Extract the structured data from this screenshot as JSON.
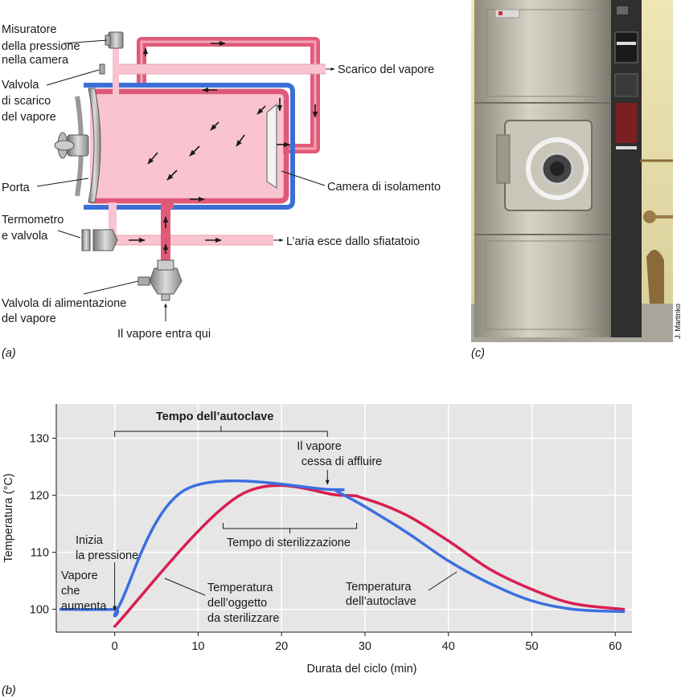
{
  "panel_a": {
    "label": "(a)",
    "labels": {
      "gauge": [
        "Misuratore",
        "della pressione",
        "nella camera"
      ],
      "exhaust_valve": [
        "Valvola",
        "di scarico",
        "del vapore"
      ],
      "door": "Porta",
      "thermometer": [
        "Termometro",
        "e valvola"
      ],
      "supply_valve": [
        "Valvola di alimentazione",
        "del vapore"
      ],
      "steam_in": "Il vapore entra qui",
      "air_out": "L’aria esce dallo sfiatatoio",
      "jacket": "Camera di isolamento",
      "steam_exhaust": "Scarico del vapore"
    },
    "colors": {
      "steam": "#e05a78",
      "chamber": "#f9c3d0",
      "jacket": "#3b6fd6",
      "metal": "#b5b5b5"
    }
  },
  "panel_c": {
    "label": "(c)",
    "credit": "J. Martinko"
  },
  "panel_b": {
    "label": "(b)"
  },
  "chart_data": {
    "type": "line",
    "xlabel": "Durata del ciclo (min)",
    "ylabel": "Temperatura (°C)",
    "xlim": [
      -7,
      62
    ],
    "ylim": [
      96,
      136
    ],
    "xticks": [
      0,
      10,
      20,
      30,
      40,
      50,
      60
    ],
    "yticks": [
      100,
      110,
      120,
      130
    ],
    "grid": true,
    "series": [
      {
        "name": "Temperatura dell’autoclave",
        "color": "#3b6fe0",
        "points": [
          [
            -6.5,
            100
          ],
          [
            0,
            100
          ],
          [
            0.5,
            100.5
          ],
          [
            8.5,
            121
          ],
          [
            26,
            121
          ],
          [
            26.5,
            120.8
          ],
          [
            27.5,
            120
          ],
          [
            30,
            118
          ],
          [
            35,
            113.5
          ],
          [
            40,
            108.5
          ],
          [
            45,
            104.5
          ],
          [
            50,
            101.5
          ],
          [
            55,
            100
          ],
          [
            61,
            99.6
          ]
        ]
      },
      {
        "name": "Temperatura dell’oggetto da sterilizzare",
        "color": "#d81f50",
        "points": [
          [
            0,
            97
          ],
          [
            15,
            120
          ],
          [
            27,
            120
          ],
          [
            30,
            119.4
          ],
          [
            35,
            116.5
          ],
          [
            40,
            112
          ],
          [
            45,
            107
          ],
          [
            50,
            103.5
          ],
          [
            55,
            101
          ],
          [
            61,
            100
          ]
        ]
      }
    ],
    "annotations": {
      "autoclave_time": "Tempo dell’autoclave",
      "autoclave_range": [
        0,
        25.5
      ],
      "steam_stops": [
        "Il vapore",
        "cessa di affluire"
      ],
      "sterilization_time": "Tempo di sterilizzazione",
      "sterilization_range": [
        13,
        29
      ],
      "pressure_start": [
        "Inizia",
        "la pressione"
      ],
      "steam_rising": [
        "Vapore",
        "che",
        "aumenta"
      ],
      "object_temp": [
        "Temperatura",
        "dell’oggetto",
        "da sterilizzare"
      ],
      "autoclave_temp": [
        "Temperatura",
        "dell’autoclave"
      ]
    }
  }
}
